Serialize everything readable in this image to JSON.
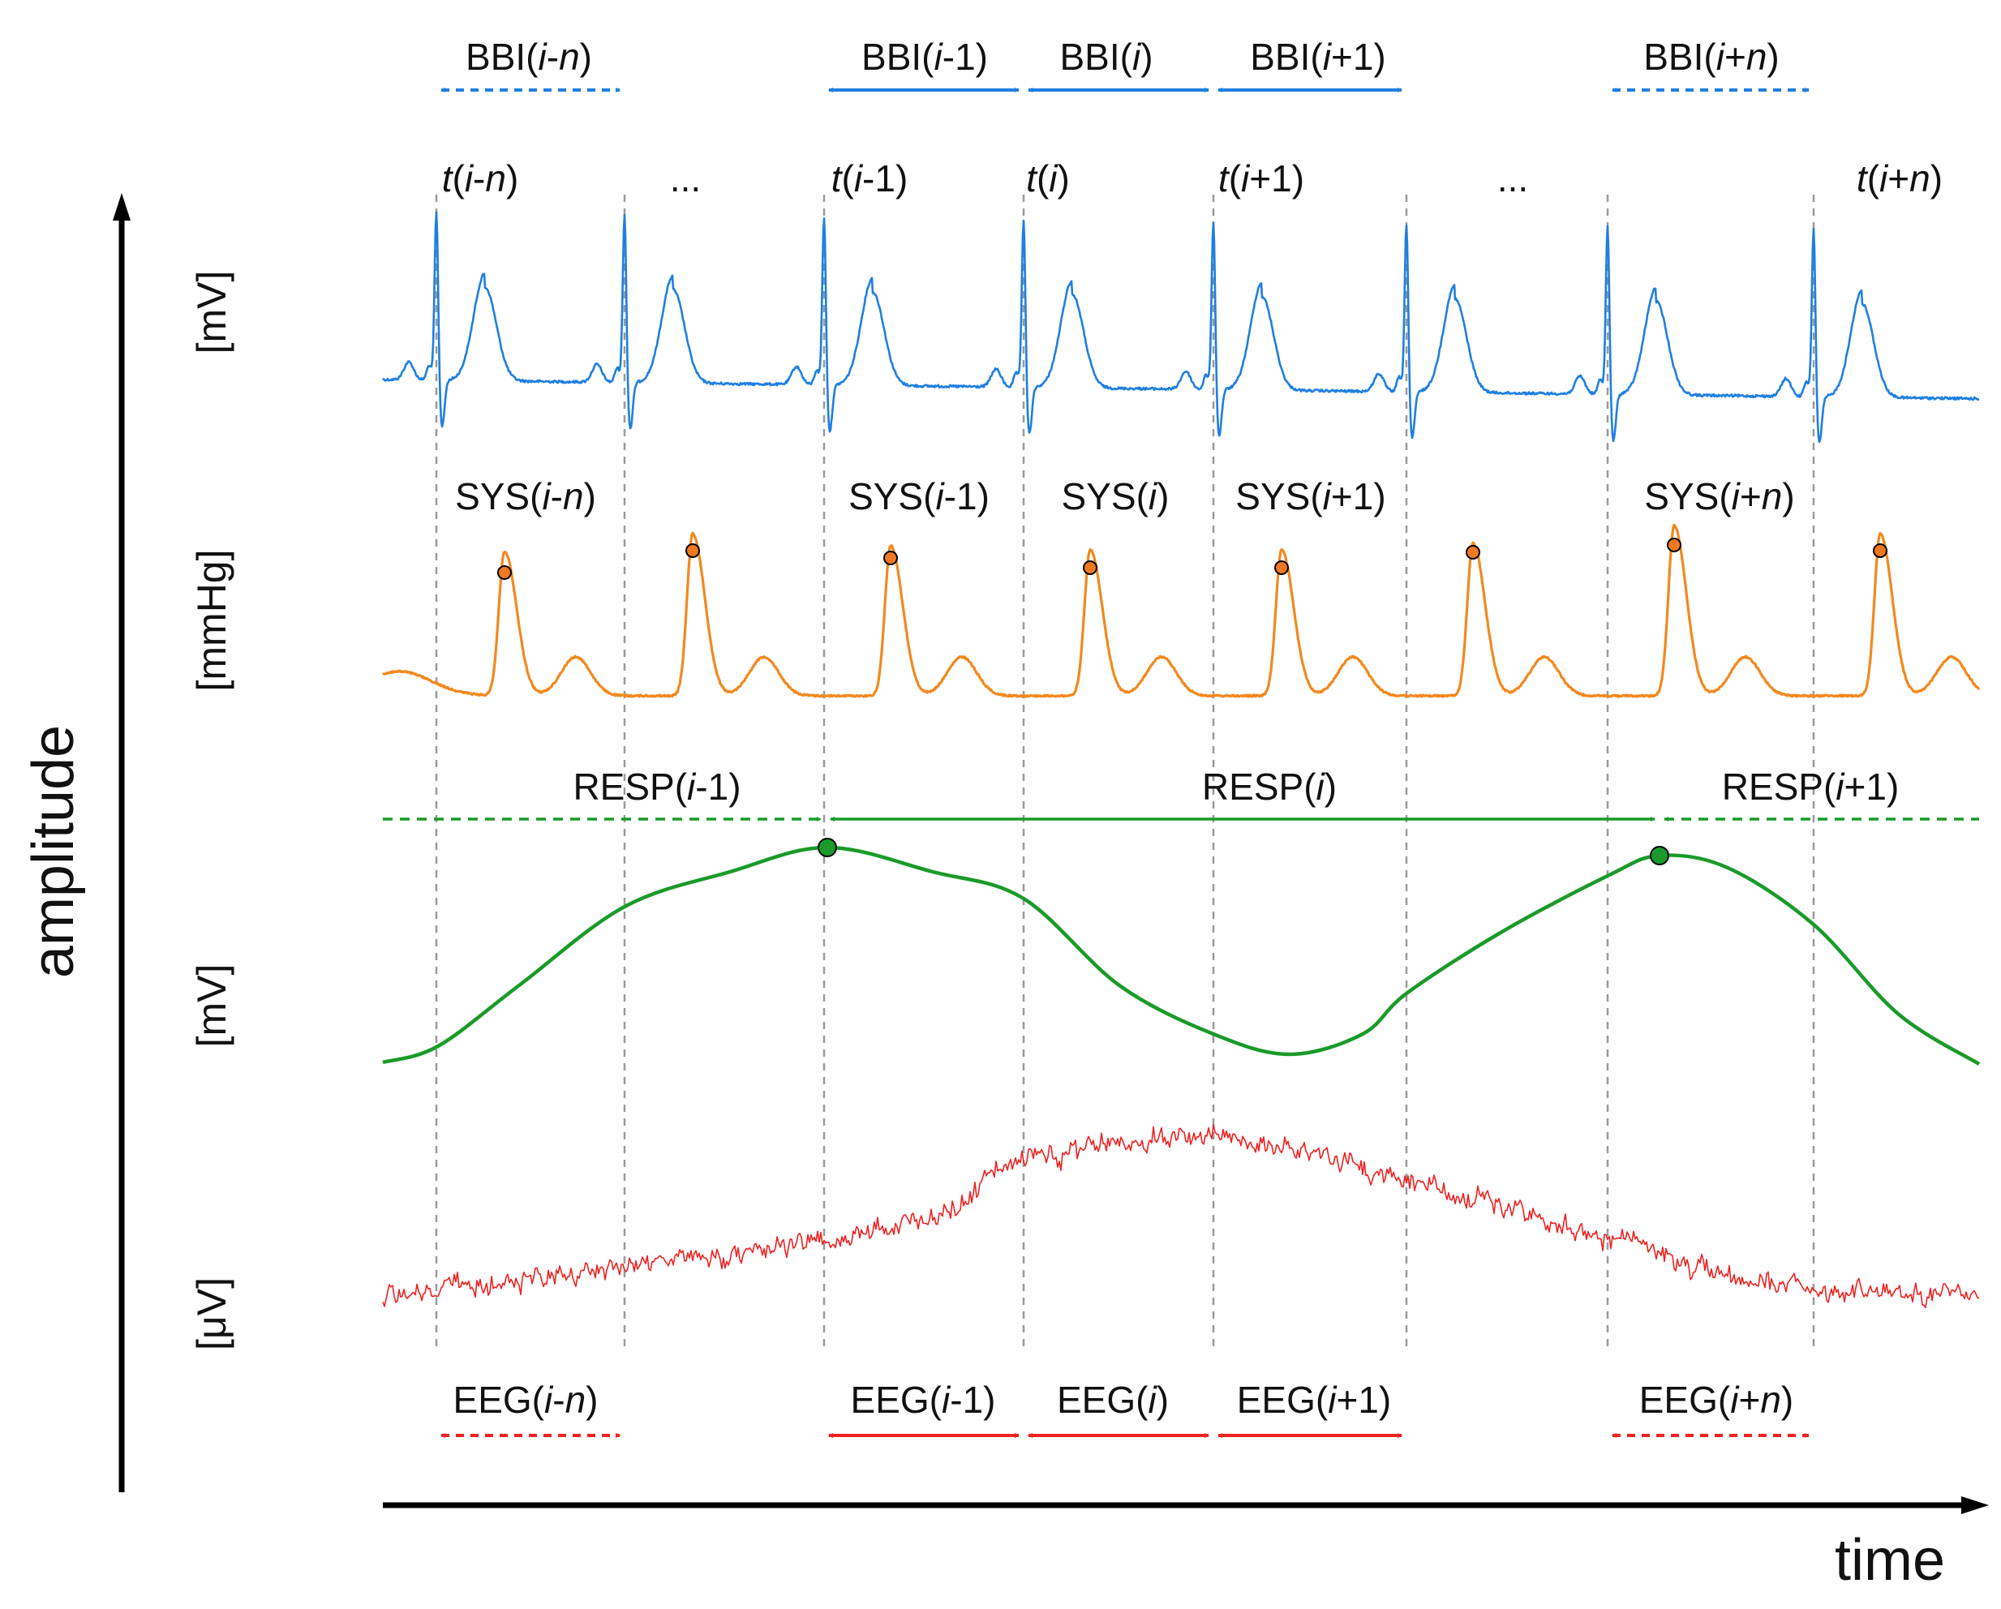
{
  "axes": {
    "y_title": "amplitude",
    "x_title": "time"
  },
  "units": {
    "ecg": "[mV]",
    "bp": "[mmHg]",
    "resp": "[mV]",
    "eeg": "[μV]"
  },
  "ellipsis": "...",
  "time_markers": [
    {
      "base": "i",
      "op": "-",
      "idx": "n",
      "idx_italic": true
    },
    {
      "base": "i",
      "op": "-",
      "idx": "1",
      "idx_italic": false
    },
    {
      "base": "i",
      "op": "",
      "idx": "",
      "idx_italic": false
    },
    {
      "base": "i",
      "op": "+",
      "idx": "1",
      "idx_italic": false
    },
    {
      "base": "i",
      "op": "+",
      "idx": "n",
      "idx_italic": true
    }
  ],
  "bbi_prefix": "BBI",
  "sys_prefix": "SYS",
  "eeg_prefix": "EEG",
  "resp_labels": [
    {
      "prefix": "RESP",
      "base": "i",
      "op": "-",
      "idx": "1",
      "idx_italic": false
    },
    {
      "prefix": "RESP",
      "base": "i",
      "op": "",
      "idx": "",
      "idx_italic": false
    },
    {
      "prefix": "RESP",
      "base": "i",
      "op": "+",
      "idx": "1",
      "idx_italic": false
    }
  ],
  "colors": {
    "ecg": "#1f7fe0",
    "bp": "#f2891f",
    "bp_dot": "#f07820",
    "resp": "#1a9a2a",
    "eeg": "#ee2222",
    "axis": "#000000",
    "grid": "#9a9a9a"
  }
}
